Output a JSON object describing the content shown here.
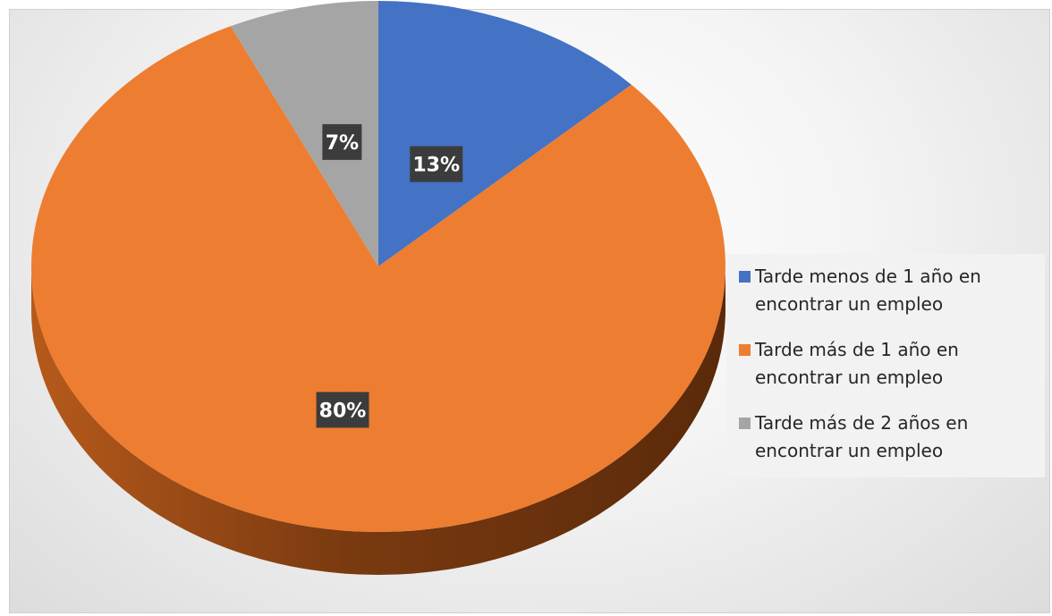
{
  "chart_data": {
    "type": "pie",
    "style": "3d",
    "title": "",
    "slices": [
      {
        "name": "Tarde menos de 1 año en encontrar un empleo",
        "value": 13,
        "label": "13%",
        "color": "#4472C4"
      },
      {
        "name": "Tarde más de 1 año en encontrar un empleo",
        "value": 80,
        "label": "80%",
        "color": "#ED7D31"
      },
      {
        "name": "Tarde más de 2 años en encontrar un empleo",
        "value": 7,
        "label": "7%",
        "color": "#A5A5A5"
      }
    ],
    "legend_position": "right"
  },
  "legend": {
    "items": [
      {
        "line1": "Tarde menos de 1 año en",
        "line2": "encontrar un empleo"
      },
      {
        "line1": "Tarde más de 1 año en",
        "line2": "encontrar un empleo"
      },
      {
        "line1": "Tarde más de 2 años en",
        "line2": "encontrar un empleo"
      }
    ]
  },
  "colors": {
    "blue": "#4472C4",
    "orange": "#ED7D31",
    "gray": "#A5A5A5",
    "label_bg": "#3a3a3a"
  }
}
